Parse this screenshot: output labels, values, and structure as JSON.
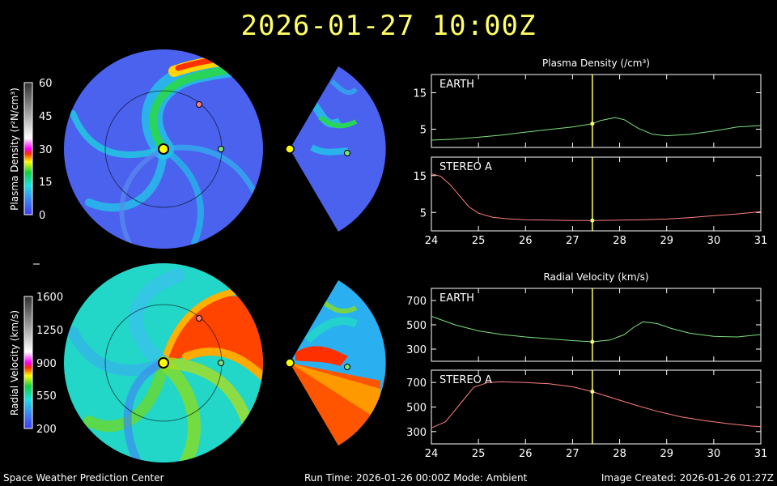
{
  "header": {
    "timestamp": "2026-01-27 10:00Z"
  },
  "footer": {
    "left": "Space Weather Prediction Center",
    "center": "Run Time: 2026-01-26 00:00Z  Mode: Ambient",
    "right": "Image Created: 2026-01-26 01:27Z"
  },
  "colorbars": {
    "density": {
      "label": "Plasma Density (r²N/cm³)",
      "ticks": [
        "60",
        "45",
        "30",
        "15",
        "0"
      ]
    },
    "velocity": {
      "label": "Radial Velocity (km/s)",
      "ticks": [
        "1600",
        "1250",
        "900",
        "550",
        "200"
      ]
    }
  },
  "colors": {
    "earth": "#7fe07f",
    "stereo": "#ff7f7f",
    "cursor": "#ffff66",
    "title": "#ffff66"
  },
  "chart_data": [
    {
      "type": "line",
      "title": "Plasma Density (/cm³)",
      "xlim": [
        24,
        31
      ],
      "ylim": [
        0,
        20
      ],
      "yticks": [
        5,
        15
      ],
      "xticks": [
        24,
        25,
        26,
        27,
        28,
        29,
        30,
        31
      ],
      "cursor_x": 27.42,
      "panels": [
        {
          "name": "EARTH",
          "x": [
            24,
            24.5,
            25,
            25.5,
            26,
            26.5,
            27,
            27.42,
            27.6,
            27.9,
            28.1,
            28.4,
            28.7,
            29,
            29.5,
            30,
            30.5,
            31
          ],
          "y": [
            2,
            2.3,
            2.8,
            3.4,
            4.2,
            4.9,
            5.6,
            6.5,
            7.4,
            8.2,
            7.6,
            5.2,
            3.6,
            3.2,
            3.6,
            4.5,
            5.6,
            6.0
          ]
        },
        {
          "name": "STEREO A",
          "x": [
            24,
            24.2,
            24.4,
            24.6,
            24.8,
            25,
            25.3,
            25.6,
            26,
            26.5,
            27,
            27.42,
            28,
            28.5,
            29,
            29.5,
            30,
            30.5,
            31
          ],
          "y": [
            15.5,
            14.8,
            12.5,
            9.5,
            6.5,
            4.8,
            3.7,
            3.3,
            3.0,
            2.9,
            2.8,
            2.8,
            2.9,
            3.0,
            3.2,
            3.6,
            4.1,
            4.6,
            5.2
          ]
        }
      ]
    },
    {
      "type": "line",
      "title": "Radial Velocity (km/s)",
      "xlim": [
        24,
        31
      ],
      "ylim": [
        200,
        800
      ],
      "yticks": [
        300,
        500,
        700
      ],
      "xticks": [
        24,
        25,
        26,
        27,
        28,
        29,
        30,
        31
      ],
      "cursor_x": 27.42,
      "panels": [
        {
          "name": "EARTH",
          "x": [
            24,
            24.5,
            25,
            25.5,
            26,
            26.5,
            27,
            27.42,
            27.8,
            28.1,
            28.3,
            28.5,
            28.8,
            29.1,
            29.5,
            30,
            30.5,
            31
          ],
          "y": [
            570,
            500,
            450,
            420,
            400,
            385,
            370,
            360,
            375,
            420,
            480,
            525,
            510,
            470,
            430,
            405,
            400,
            420
          ]
        },
        {
          "name": "STEREO A",
          "x": [
            24,
            24.3,
            24.6,
            24.9,
            25.2,
            25.5,
            26,
            26.5,
            27,
            27.42,
            27.8,
            28.3,
            28.8,
            29.3,
            29.8,
            30.3,
            30.8,
            31
          ],
          "y": [
            330,
            380,
            520,
            660,
            700,
            705,
            700,
            690,
            665,
            625,
            580,
            520,
            465,
            420,
            390,
            365,
            345,
            340
          ]
        }
      ]
    }
  ]
}
